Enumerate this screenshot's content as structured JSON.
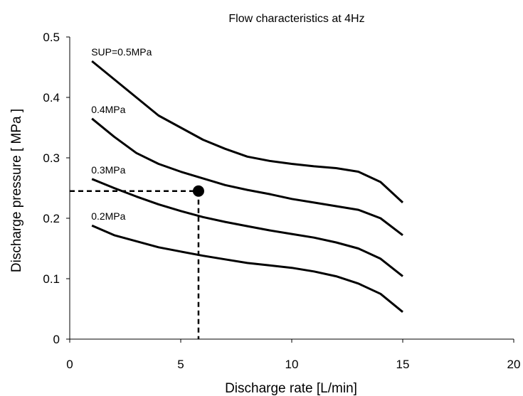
{
  "chart_data": {
    "type": "line",
    "title": "Flow characteristics at 4Hz",
    "xlabel": "Discharge rate [L/min]",
    "ylabel": "Discharge pressure [ MPa ]",
    "xlim": [
      0,
      20
    ],
    "ylim": [
      0,
      0.5
    ],
    "xticks": [
      "0",
      "5",
      "10",
      "15",
      "20"
    ],
    "yticks": [
      "0",
      "0.1",
      "0.2",
      "0.3",
      "0.4",
      "0.5"
    ],
    "grid": false,
    "legend": "none",
    "series": [
      {
        "label": "SUP=0.5MPa",
        "x": [
          1,
          2,
          3,
          4,
          5,
          6,
          7,
          8,
          9,
          10,
          11,
          12,
          13,
          14,
          15
        ],
        "y": [
          0.46,
          0.43,
          0.4,
          0.37,
          0.35,
          0.33,
          0.315,
          0.302,
          0.295,
          0.29,
          0.286,
          0.283,
          0.277,
          0.26,
          0.226
        ]
      },
      {
        "label": "0.4MPa",
        "x": [
          1,
          2,
          3,
          4,
          5,
          6,
          7,
          8,
          9,
          10,
          11,
          12,
          13,
          14,
          15
        ],
        "y": [
          0.365,
          0.335,
          0.308,
          0.29,
          0.277,
          0.266,
          0.255,
          0.247,
          0.24,
          0.232,
          0.226,
          0.22,
          0.214,
          0.2,
          0.172
        ]
      },
      {
        "label": "0.3MPa",
        "x": [
          1,
          2,
          3,
          4,
          5,
          6,
          7,
          8,
          9,
          10,
          11,
          12,
          13,
          14,
          15
        ],
        "y": [
          0.265,
          0.25,
          0.236,
          0.223,
          0.212,
          0.202,
          0.194,
          0.187,
          0.18,
          0.174,
          0.168,
          0.16,
          0.15,
          0.133,
          0.104
        ]
      },
      {
        "label": "0.2MPa",
        "x": [
          1,
          2,
          3,
          4,
          5,
          6,
          7,
          8,
          9,
          10,
          11,
          12,
          13,
          14,
          15
        ],
        "y": [
          0.188,
          0.172,
          0.162,
          0.152,
          0.145,
          0.138,
          0.132,
          0.126,
          0.122,
          0.118,
          0.112,
          0.104,
          0.092,
          0.075,
          0.045
        ]
      }
    ],
    "marker": {
      "x": 5.8,
      "y": 0.245
    }
  }
}
